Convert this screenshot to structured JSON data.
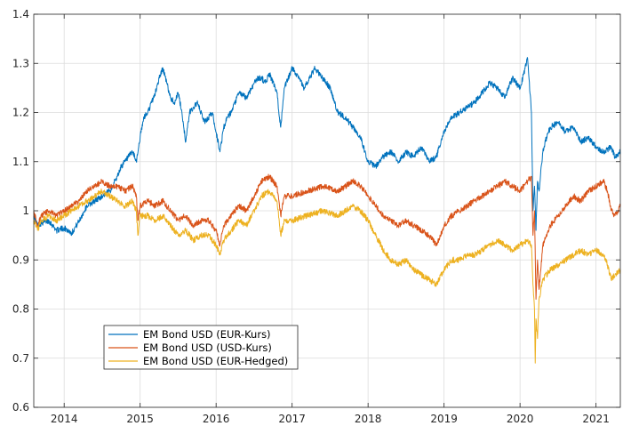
{
  "chart_data": {
    "type": "line",
    "title": "",
    "xlabel": "",
    "ylabel": "",
    "xlim": [
      2013.6,
      2021.32
    ],
    "ylim": [
      0.6,
      1.4
    ],
    "yticks": [
      "0.6",
      "0.7",
      "0.8",
      "0.9",
      "1",
      "1.1",
      "1.2",
      "1.3",
      "1.4"
    ],
    "xticks": [
      {
        "label": "2014",
        "value": 2014
      },
      {
        "label": "2015",
        "value": 2015
      },
      {
        "label": "2016",
        "value": 2016
      },
      {
        "label": "2017",
        "value": 2017
      },
      {
        "label": "2018",
        "value": 2018
      },
      {
        "label": "2019",
        "value": 2019
      },
      {
        "label": "2020",
        "value": 2020
      },
      {
        "label": "2021",
        "value": 2021
      }
    ],
    "grid": true,
    "legend_position": "bottom-left",
    "series": [
      {
        "name": "EM Bond USD (EUR-Kurs)",
        "color": "#0072BD",
        "x": [
          2013.6,
          2013.65,
          2013.7,
          2013.8,
          2013.9,
          2014.0,
          2014.1,
          2014.2,
          2014.3,
          2014.4,
          2014.5,
          2014.6,
          2014.7,
          2014.75,
          2014.8,
          2014.85,
          2014.9,
          2014.95,
          2015.0,
          2015.05,
          2015.1,
          2015.15,
          2015.2,
          2015.25,
          2015.3,
          2015.35,
          2015.4,
          2015.45,
          2015.5,
          2015.55,
          2015.6,
          2015.65,
          2015.7,
          2015.75,
          2015.8,
          2015.85,
          2015.9,
          2015.95,
          2016.0,
          2016.05,
          2016.1,
          2016.15,
          2016.2,
          2016.3,
          2016.4,
          2016.5,
          2016.55,
          2016.6,
          2016.65,
          2016.7,
          2016.8,
          2016.85,
          2016.9,
          2017.0,
          2017.1,
          2017.15,
          2017.2,
          2017.3,
          2017.4,
          2017.5,
          2017.6,
          2017.7,
          2017.8,
          2017.9,
          2018.0,
          2018.1,
          2018.2,
          2018.3,
          2018.4,
          2018.5,
          2018.6,
          2018.7,
          2018.8,
          2018.9,
          2019.0,
          2019.1,
          2019.2,
          2019.3,
          2019.4,
          2019.5,
          2019.6,
          2019.7,
          2019.8,
          2019.9,
          2020.0,
          2020.1,
          2020.15,
          2020.17,
          2020.19,
          2020.21,
          2020.23,
          2020.25,
          2020.3,
          2020.35,
          2020.4,
          2020.5,
          2020.6,
          2020.7,
          2020.8,
          2020.9,
          2021.0,
          2021.1,
          2021.2,
          2021.25,
          2021.32
        ],
        "values": [
          0.99,
          0.97,
          0.975,
          0.98,
          0.96,
          0.965,
          0.955,
          0.98,
          1.01,
          1.02,
          1.03,
          1.04,
          1.07,
          1.09,
          1.1,
          1.11,
          1.12,
          1.1,
          1.15,
          1.19,
          1.2,
          1.22,
          1.24,
          1.27,
          1.29,
          1.26,
          1.23,
          1.22,
          1.24,
          1.2,
          1.14,
          1.2,
          1.21,
          1.22,
          1.2,
          1.18,
          1.19,
          1.2,
          1.16,
          1.12,
          1.17,
          1.19,
          1.2,
          1.24,
          1.23,
          1.26,
          1.27,
          1.27,
          1.26,
          1.28,
          1.24,
          1.17,
          1.25,
          1.29,
          1.27,
          1.25,
          1.26,
          1.29,
          1.27,
          1.25,
          1.2,
          1.19,
          1.17,
          1.15,
          1.1,
          1.09,
          1.11,
          1.12,
          1.1,
          1.12,
          1.11,
          1.13,
          1.1,
          1.11,
          1.16,
          1.19,
          1.2,
          1.21,
          1.22,
          1.24,
          1.26,
          1.25,
          1.23,
          1.27,
          1.25,
          1.31,
          1.2,
          1.0,
          1.05,
          0.96,
          1.06,
          1.04,
          1.12,
          1.15,
          1.17,
          1.18,
          1.16,
          1.17,
          1.14,
          1.15,
          1.13,
          1.12,
          1.13,
          1.11,
          1.12
        ]
      },
      {
        "name": "EM Bond USD (USD-Kurs)",
        "color": "#D95319",
        "x": [
          2013.6,
          2013.65,
          2013.7,
          2013.8,
          2013.9,
          2014.0,
          2014.1,
          2014.2,
          2014.3,
          2014.4,
          2014.5,
          2014.6,
          2014.7,
          2014.8,
          2014.9,
          2014.95,
          2014.97,
          2015.0,
          2015.1,
          2015.2,
          2015.3,
          2015.4,
          2015.5,
          2015.6,
          2015.7,
          2015.8,
          2015.9,
          2016.0,
          2016.05,
          2016.1,
          2016.2,
          2016.3,
          2016.4,
          2016.5,
          2016.6,
          2016.7,
          2016.8,
          2016.85,
          2016.9,
          2017.0,
          2017.2,
          2017.4,
          2017.6,
          2017.8,
          2017.9,
          2018.0,
          2018.1,
          2018.2,
          2018.3,
          2018.4,
          2018.5,
          2018.6,
          2018.7,
          2018.8,
          2018.9,
          2019.0,
          2019.1,
          2019.2,
          2019.3,
          2019.4,
          2019.5,
          2019.6,
          2019.7,
          2019.8,
          2019.9,
          2020.0,
          2020.1,
          2020.15,
          2020.17,
          2020.19,
          2020.21,
          2020.23,
          2020.25,
          2020.3,
          2020.4,
          2020.5,
          2020.6,
          2020.7,
          2020.8,
          2020.9,
          2021.0,
          2021.1,
          2021.15,
          2021.2,
          2021.25,
          2021.32
        ],
        "values": [
          1.0,
          0.97,
          0.99,
          1.0,
          0.99,
          1.0,
          1.01,
          1.02,
          1.04,
          1.05,
          1.06,
          1.05,
          1.05,
          1.04,
          1.05,
          1.03,
          0.98,
          1.01,
          1.02,
          1.01,
          1.02,
          1.0,
          0.98,
          0.99,
          0.97,
          0.98,
          0.98,
          0.96,
          0.93,
          0.97,
          0.99,
          1.01,
          1.0,
          1.03,
          1.06,
          1.07,
          1.05,
          0.99,
          1.03,
          1.03,
          1.04,
          1.05,
          1.04,
          1.06,
          1.05,
          1.03,
          1.01,
          0.99,
          0.98,
          0.97,
          0.98,
          0.97,
          0.96,
          0.95,
          0.93,
          0.97,
          0.99,
          1.0,
          1.01,
          1.02,
          1.03,
          1.04,
          1.05,
          1.06,
          1.05,
          1.04,
          1.06,
          1.07,
          0.95,
          1.0,
          0.82,
          0.9,
          0.84,
          0.93,
          0.97,
          0.99,
          1.01,
          1.03,
          1.02,
          1.04,
          1.05,
          1.06,
          1.04,
          1.0,
          0.99,
          1.01
        ]
      },
      {
        "name": "EM Bond USD (EUR-Hedged)",
        "color": "#EDB120",
        "x": [
          2013.6,
          2013.65,
          2013.7,
          2013.8,
          2013.9,
          2014.0,
          2014.1,
          2014.2,
          2014.3,
          2014.4,
          2014.5,
          2014.6,
          2014.7,
          2014.8,
          2014.9,
          2014.95,
          2014.97,
          2015.0,
          2015.1,
          2015.2,
          2015.3,
          2015.4,
          2015.5,
          2015.6,
          2015.7,
          2015.8,
          2015.9,
          2016.0,
          2016.05,
          2016.1,
          2016.2,
          2016.3,
          2016.4,
          2016.5,
          2016.6,
          2016.7,
          2016.8,
          2016.85,
          2016.9,
          2017.0,
          2017.2,
          2017.4,
          2017.6,
          2017.8,
          2017.9,
          2018.0,
          2018.1,
          2018.2,
          2018.3,
          2018.4,
          2018.5,
          2018.6,
          2018.7,
          2018.8,
          2018.9,
          2019.0,
          2019.1,
          2019.2,
          2019.3,
          2019.4,
          2019.5,
          2019.6,
          2019.7,
          2019.8,
          2019.9,
          2020.0,
          2020.1,
          2020.15,
          2020.17,
          2020.19,
          2020.2,
          2020.21,
          2020.23,
          2020.25,
          2020.3,
          2020.4,
          2020.5,
          2020.6,
          2020.7,
          2020.8,
          2020.9,
          2021.0,
          2021.1,
          2021.15,
          2021.2,
          2021.25,
          2021.32
        ],
        "values": [
          0.98,
          0.96,
          0.98,
          0.99,
          0.98,
          0.99,
          1.0,
          1.01,
          1.02,
          1.03,
          1.04,
          1.03,
          1.02,
          1.01,
          1.02,
          1.0,
          0.95,
          0.99,
          0.99,
          0.98,
          0.99,
          0.97,
          0.95,
          0.96,
          0.94,
          0.95,
          0.95,
          0.93,
          0.91,
          0.94,
          0.96,
          0.98,
          0.97,
          1.0,
          1.03,
          1.04,
          1.02,
          0.95,
          0.98,
          0.98,
          0.99,
          1.0,
          0.99,
          1.01,
          1.0,
          0.98,
          0.95,
          0.92,
          0.9,
          0.89,
          0.9,
          0.88,
          0.87,
          0.86,
          0.85,
          0.88,
          0.9,
          0.9,
          0.91,
          0.91,
          0.92,
          0.93,
          0.94,
          0.93,
          0.92,
          0.93,
          0.94,
          0.93,
          0.85,
          0.8,
          0.69,
          0.78,
          0.74,
          0.82,
          0.86,
          0.88,
          0.89,
          0.9,
          0.91,
          0.92,
          0.91,
          0.92,
          0.91,
          0.89,
          0.86,
          0.87,
          0.88
        ]
      }
    ]
  }
}
